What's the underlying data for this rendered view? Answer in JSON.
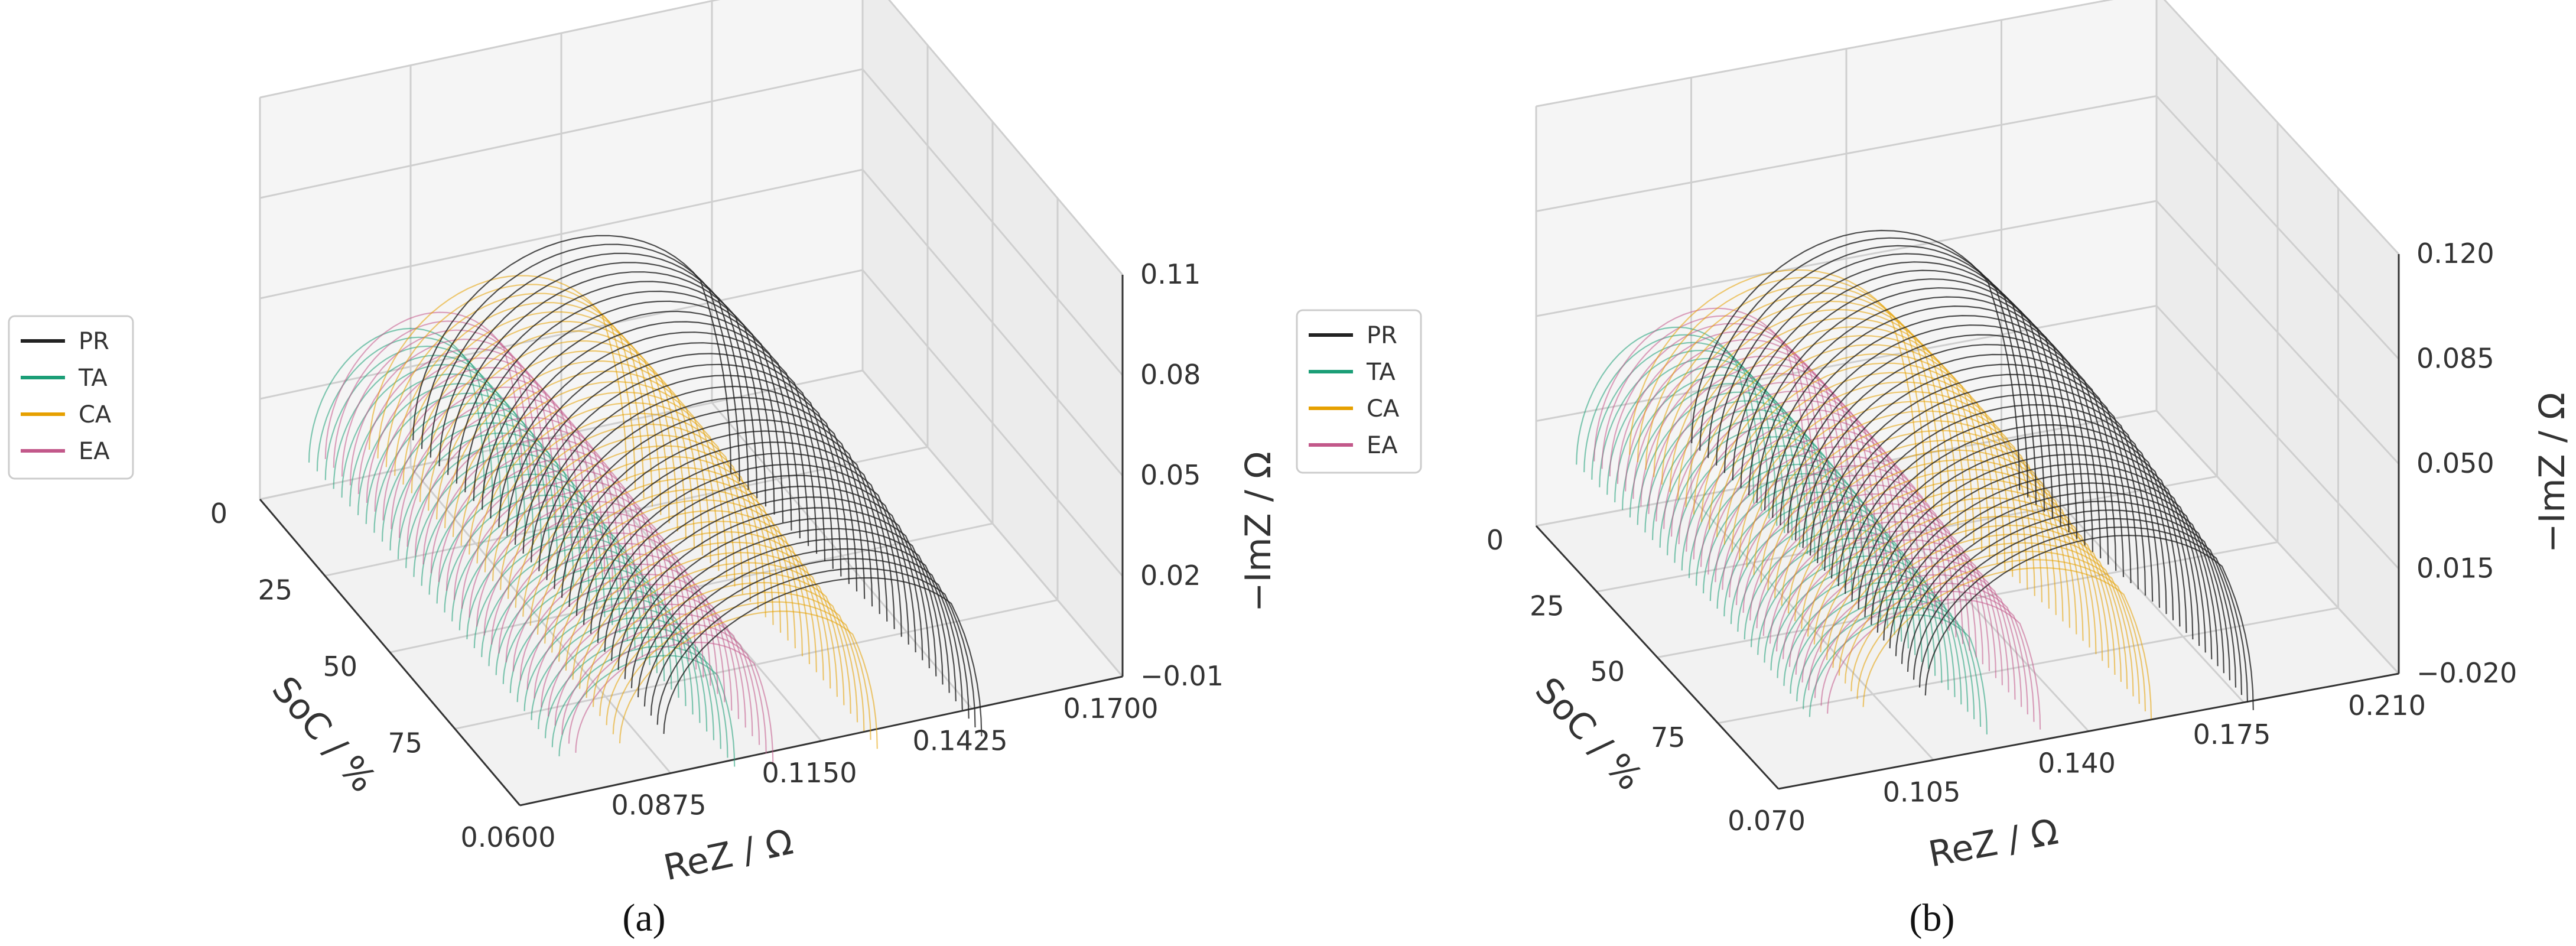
{
  "chart_data": [
    {
      "type": "line3d",
      "panel_label": "(a)",
      "xlabel": "ReZ / Ω",
      "ylabel": "SoC / %",
      "zlabel": "−ImZ / Ω",
      "x_ticks": [
        "0.0600",
        "0.0875",
        "0.1150",
        "0.1425",
        "0.1700"
      ],
      "y_ticks": [
        "0",
        "25",
        "50",
        "75"
      ],
      "z_ticks": [
        "−0.01",
        "0.02",
        "0.05",
        "0.08",
        "0.11"
      ],
      "xlim": [
        0.06,
        0.17
      ],
      "ylim": [
        0,
        100
      ],
      "zlim": [
        -0.01,
        0.11
      ],
      "grid": true,
      "legend_position": "left",
      "series": [
        {
          "name": "TA",
          "color": "#1b9e77",
          "rez_start": 0.068,
          "rez_end": 0.1,
          "imz_peak": 0.034
        },
        {
          "name": "EA",
          "color": "#c2588a",
          "rez_start": 0.071,
          "rez_end": 0.107,
          "imz_peak": 0.037
        },
        {
          "name": "CA",
          "color": "#e6a000",
          "rez_start": 0.079,
          "rez_end": 0.126,
          "imz_peak": 0.043
        },
        {
          "name": "PR",
          "color": "#222222",
          "rez_start": 0.087,
          "rez_end": 0.145,
          "imz_peak": 0.05
        }
      ]
    },
    {
      "type": "line3d",
      "panel_label": "(b)",
      "xlabel": "ReZ / Ω",
      "ylabel": "SoC / %",
      "zlabel": "−ImZ / Ω",
      "x_ticks": [
        "0.070",
        "0.105",
        "0.140",
        "0.175",
        "0.210"
      ],
      "y_ticks": [
        "0",
        "25",
        "50",
        "75"
      ],
      "z_ticks": [
        "−0.020",
        "0.015",
        "0.050",
        "0.085",
        "0.120"
      ],
      "xlim": [
        0.07,
        0.21
      ],
      "ylim": [
        0,
        100
      ],
      "zlim": [
        -0.02,
        0.12
      ],
      "grid": true,
      "legend_position": "left",
      "series": [
        {
          "name": "TA",
          "color": "#1b9e77",
          "rez_start": 0.078,
          "rez_end": 0.118,
          "imz_peak": 0.04
        },
        {
          "name": "EA",
          "color": "#c2588a",
          "rez_start": 0.082,
          "rez_end": 0.13,
          "imz_peak": 0.044
        },
        {
          "name": "CA",
          "color": "#e6a000",
          "rez_start": 0.09,
          "rez_end": 0.155,
          "imz_peak": 0.052
        },
        {
          "name": "PR",
          "color": "#222222",
          "rez_start": 0.104,
          "rez_end": 0.178,
          "imz_peak": 0.06
        }
      ]
    }
  ],
  "legend": [
    {
      "name": "PR",
      "color": "#222222"
    },
    {
      "name": "TA",
      "color": "#1b9e77"
    },
    {
      "name": "CA",
      "color": "#e6a000"
    },
    {
      "name": "EA",
      "color": "#c2588a"
    }
  ]
}
